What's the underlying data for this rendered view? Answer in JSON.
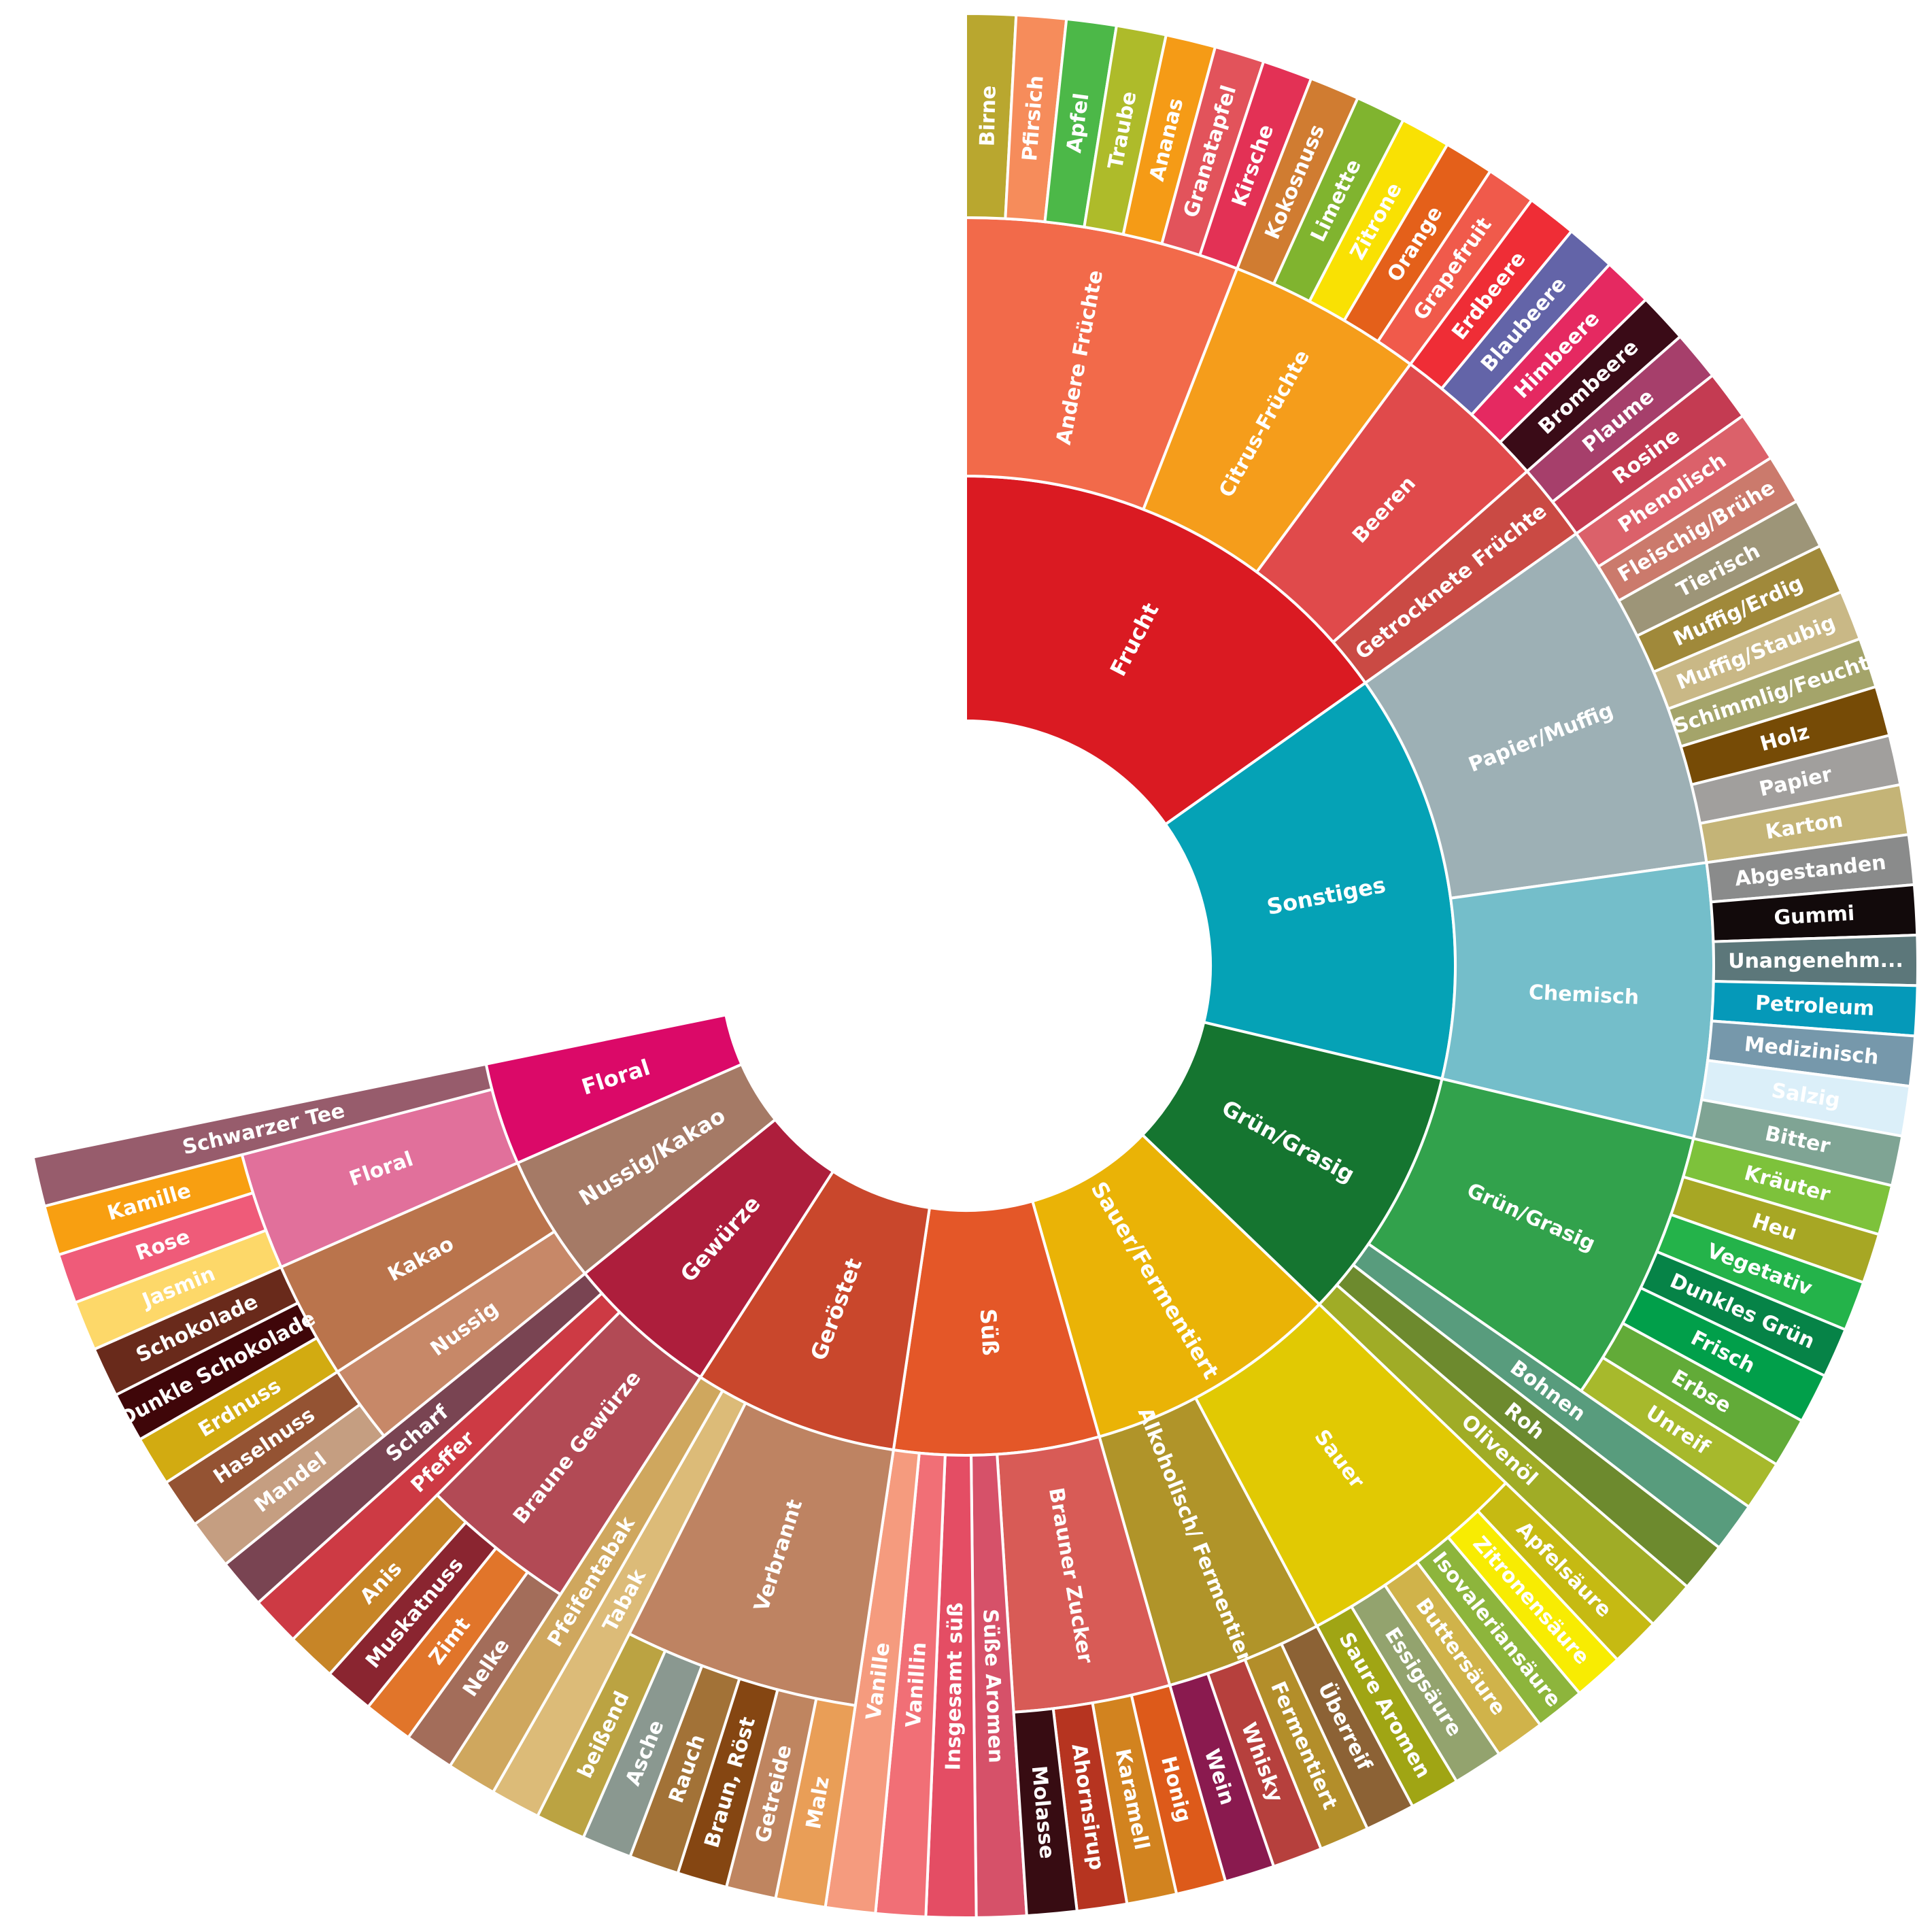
{
  "wheel": {
    "tiers": [
      {
        "name": "Frucht",
        "color": "#DA1A22",
        "children": [
          {
            "name": "Andere Früchte",
            "color": "#F26A4A",
            "children": [
              {
                "name": "Birne",
                "color": "#B9A72F"
              },
              {
                "name": "Pfirsich",
                "color": "#F68C5B"
              },
              {
                "name": "Apfel",
                "color": "#4CB848"
              },
              {
                "name": "Traube",
                "color": "#AEBB2A"
              },
              {
                "name": "Ananas",
                "color": "#F59B16"
              },
              {
                "name": "Granatapfel",
                "color": "#E2535B"
              },
              {
                "name": "Kirsche",
                "color": "#E33155"
              }
            ]
          },
          {
            "name": "Citrus-Früchte",
            "color": "#F59D1B",
            "children": [
              {
                "name": "Kokosnuss",
                "color": "#D07C31"
              },
              {
                "name": "Limette",
                "color": "#80B42F"
              },
              {
                "name": "Zitrone",
                "color": "#F9E103"
              },
              {
                "name": "Orange",
                "color": "#E4601A"
              },
              {
                "name": "Grapefruit",
                "color": "#F05A4B"
              }
            ]
          },
          {
            "name": "Beeren",
            "color": "#E04A4B",
            "children": [
              {
                "name": "Erdbeere",
                "color": "#EF2D36"
              },
              {
                "name": "Blaubeere",
                "color": "#6364A8"
              },
              {
                "name": "Himbeere",
                "color": "#E52961"
              },
              {
                "name": "Brombeere",
                "color": "#3A0B17"
              }
            ]
          },
          {
            "name": "Getrocknete Früchte",
            "color": "#CA4A44",
            "children": [
              {
                "name": "Plaume",
                "color": "#A63F6B"
              },
              {
                "name": "Rosine",
                "color": "#C43B52"
              }
            ]
          }
        ]
      },
      {
        "name": "Sonstiges",
        "color": "#05A2B6",
        "children": [
          {
            "name": "Papier/Muffig",
            "color": "#9DB0B5",
            "children": [
              {
                "name": "Phenolisch",
                "color": "#DB616A"
              },
              {
                "name": "Fleischig/Brühe",
                "color": "#CB7A6C"
              },
              {
                "name": "Tierisch",
                "color": "#9D9578"
              },
              {
                "name": "Muffig/Erdig",
                "color": "#A0893A"
              },
              {
                "name": "Muffig/Staubig",
                "color": "#C9B886"
              },
              {
                "name": "Schimmlig/Feucht",
                "color": "#A4A46A"
              },
              {
                "name": "Holz",
                "color": "#764B06"
              },
              {
                "name": "Papier",
                "color": "#A19F9D"
              },
              {
                "name": "Karton",
                "color": "#C4B477"
              }
            ]
          },
          {
            "name": "Chemisch",
            "color": "#74BECA",
            "children": [
              {
                "name": "Abgestanden",
                "color": "#8A8B8B"
              },
              {
                "name": "Gummi",
                "color": "#120A0B"
              },
              {
                "name": "Unangenehm...",
                "color": "#5C777A"
              },
              {
                "name": "Petroleum",
                "color": "#0599B9"
              },
              {
                "name": "Medizinisch",
                "color": "#7698AB"
              },
              {
                "name": "Salzig",
                "color": "#DBEFF9"
              },
              {
                "name": "Bitter",
                "color": "#7FA494"
              }
            ]
          }
        ]
      },
      {
        "name": "Grün/Grasig",
        "color": "#157530",
        "children": [
          {
            "name": "Grün/Grasig",
            "color": "#32A24C",
            "children": [
              {
                "name": "Kräuter",
                "color": "#7DC23B"
              },
              {
                "name": "Heu",
                "color": "#A7A724"
              },
              {
                "name": "Vegetativ",
                "color": "#24B34A"
              },
              {
                "name": "Dunkles Grün",
                "color": "#068347"
              },
              {
                "name": "Frisch",
                "color": "#019F4A"
              },
              {
                "name": "Erbse",
                "color": "#62AB38"
              },
              {
                "name": "Unreif",
                "color": "#A7B92C"
              }
            ]
          },
          {
            "name": "Bohnen",
            "color": "#589C7D"
          },
          {
            "name": "Roh",
            "color": "#6D8A2E"
          },
          {
            "name": "Olivenöl",
            "color": "#A0AC26"
          }
        ]
      },
      {
        "name": "Sauer/Fermentiert",
        "color": "#EAB306",
        "children": [
          {
            "name": "Sauer",
            "color": "#E1C903",
            "children": [
              {
                "name": "Apfelsäure",
                "color": "#C6BA12"
              },
              {
                "name": "Zitronensäure",
                "color": "#F8EC02"
              },
              {
                "name": "Isovaleriansäure",
                "color": "#8DB53C"
              },
              {
                "name": "Buttersäure",
                "color": "#D0B34A"
              },
              {
                "name": "Essigsäure",
                "color": "#93A36E"
              },
              {
                "name": "Saure Aromen",
                "color": "#A0A514"
              }
            ]
          },
          {
            "name": "Alkoholisch/ Fermentiert",
            "color": "#B09429",
            "children": [
              {
                "name": "Überreif",
                "color": "#8C6235"
              },
              {
                "name": "Fermentiert",
                "color": "#B38E2A"
              },
              {
                "name": "Whisky",
                "color": "#B6403D"
              },
              {
                "name": "Wein",
                "color": "#8A1A4F"
              }
            ]
          }
        ]
      },
      {
        "name": "Süß",
        "color": "#E45728",
        "children": [
          {
            "name": "Brauner Zucker",
            "color": "#D85B56",
            "children": [
              {
                "name": "Honig",
                "color": "#DD5A1A"
              },
              {
                "name": "Karamell",
                "color": "#D2831F"
              },
              {
                "name": "Ahornsirup",
                "color": "#B63420"
              },
              {
                "name": "Molasse",
                "color": "#370C12"
              }
            ]
          },
          {
            "name": "Süße Aromen",
            "color": "#D65169"
          },
          {
            "name": "Insgesamt süß",
            "color": "#E44D64"
          },
          {
            "name": "Vanillin",
            "color": "#F16F76"
          },
          {
            "name": "Vanille",
            "color": "#F59B7E"
          }
        ]
      },
      {
        "name": "Geröstet",
        "color": "#C9472C",
        "children": [
          {
            "name": "Verbrannt",
            "color": "#BE8362",
            "children": [
              {
                "name": "Malz",
                "color": "#E99E57"
              },
              {
                "name": "Getreide",
                "color": "#BF8560"
              },
              {
                "name": "Braun, Röst",
                "color": "#854612"
              },
              {
                "name": "Rauch",
                "color": "#A27237"
              },
              {
                "name": "Asche",
                "color": "#8A9890"
              },
              {
                "name": "beißend",
                "color": "#BBA342"
              }
            ]
          },
          {
            "name": "Tabak",
            "color": "#DCBB78"
          },
          {
            "name": "Pfeifentabak",
            "color": "#CFA75E"
          }
        ]
      },
      {
        "name": "Gewürze",
        "color": "#AD1E3C",
        "children": [
          {
            "name": "Braune Gewürze",
            "color": "#B24A55",
            "children": [
              {
                "name": "Nelke",
                "color": "#A36D5A"
              },
              {
                "name": "Zimt",
                "color": "#E1752A"
              },
              {
                "name": "Muskatnuss",
                "color": "#8A2530"
              },
              {
                "name": "Anis",
                "color": "#C78527"
              }
            ]
          },
          {
            "name": "Pfeffer",
            "color": "#CD3A44"
          },
          {
            "name": "Scharf",
            "color": "#794452"
          }
        ]
      },
      {
        "name": "Nussig/Kakao",
        "color": "#A57A66",
        "children": [
          {
            "name": "Nussig",
            "color": "#C78868",
            "children": [
              {
                "name": "Mandel",
                "color": "#C59E81"
              },
              {
                "name": "Haselnuss",
                "color": "#945333"
              }
            ]
          },
          {
            "name": "Kakao",
            "color": "#BA744C",
            "children": [
              {
                "name": "Erdnuss",
                "color": "#D2AB11"
              },
              {
                "name": "Dunkle Schokolade",
                "color": "#3F0609"
              },
              {
                "name": "Schokolade",
                "color": "#692A1B"
              }
            ]
          }
        ]
      },
      {
        "name": "Floral",
        "color": "#DB0968",
        "children": [
          {
            "name": "Floral",
            "color": "#E1709B",
            "children": [
              {
                "name": "Jasmin",
                "color": "#FDD869"
              },
              {
                "name": "Rose",
                "color": "#EF5B79"
              },
              {
                "name": "Kamille",
                "color": "#F89F11"
              }
            ]
          },
          {
            "name": "Schwarzer Tee",
            "color": "#975C6C"
          }
        ]
      }
    ]
  }
}
